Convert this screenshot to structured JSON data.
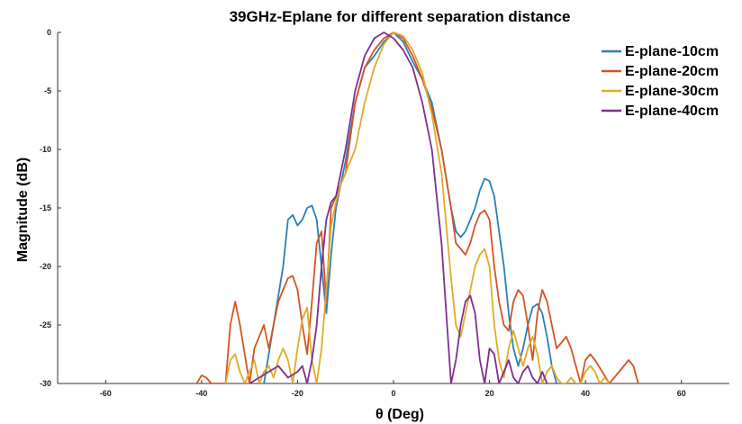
{
  "chart_data": {
    "type": "line",
    "title": "39GHz-Eplane for different separation distance",
    "xlabel": "θ (Deg)",
    "ylabel": "Magnitude (dB)",
    "xlim": [
      -70,
      70
    ],
    "ylim": [
      -30,
      0
    ],
    "xticks": [
      -60,
      -40,
      -20,
      0,
      20,
      40,
      60
    ],
    "yticks": [
      0,
      -5,
      -10,
      -15,
      -20,
      -25,
      -30
    ],
    "grid": false,
    "legend_position": "top-right",
    "series": [
      {
        "name": "E-plane-10cm",
        "color": "#2a7fb8",
        "x": [
          -27,
          -25,
          -23,
          -22,
          -21,
          -20,
          -19,
          -18,
          -17,
          -16,
          -15,
          -14,
          -13,
          -12,
          -10,
          -8,
          -6,
          -4,
          -2,
          0,
          2,
          4,
          6,
          8,
          10,
          12,
          13,
          14,
          15,
          16,
          17,
          18,
          19,
          20,
          21,
          22,
          23,
          24,
          25,
          26,
          27,
          28,
          29,
          30,
          31,
          32,
          33,
          34
        ],
        "y": [
          -30,
          -25,
          -20,
          -16,
          -15.6,
          -16.5,
          -16,
          -15,
          -14.8,
          -16,
          -20,
          -24,
          -19,
          -15,
          -11,
          -6,
          -3,
          -2,
          -0.8,
          0,
          -0.8,
          -2.5,
          -4,
          -6,
          -10,
          -15,
          -17,
          -17.5,
          -17,
          -16,
          -15,
          -13.5,
          -12.5,
          -12.7,
          -14,
          -17,
          -20,
          -24,
          -27,
          -28.5,
          -27,
          -25,
          -23.5,
          -23.2,
          -24,
          -26,
          -28.5,
          -30
        ]
      },
      {
        "name": "E-plane-20cm",
        "color": "#d45424",
        "x": [
          -41,
          -40,
          -39,
          -38,
          -35,
          -34,
          -33,
          -32,
          -30,
          -29,
          -28,
          -27,
          -26,
          -25,
          -24,
          -23,
          -22,
          -21,
          -20,
          -19,
          -18,
          -17,
          -16,
          -15,
          -14,
          -13,
          -12,
          -10,
          -8,
          -6,
          -4,
          -2,
          0,
          2,
          4,
          6,
          8,
          10,
          12,
          13,
          14,
          15,
          16,
          17,
          18,
          19,
          20,
          21,
          22,
          23,
          24,
          25,
          26,
          27,
          28,
          29,
          30,
          31,
          32,
          33,
          34,
          35,
          36,
          37,
          38,
          39,
          40,
          41,
          42,
          45,
          46,
          47,
          48,
          49,
          50,
          51
        ],
        "y": [
          -30,
          -29.3,
          -29.5,
          -30,
          -30,
          -25,
          -23,
          -25,
          -30,
          -27,
          -26,
          -25,
          -27,
          -25,
          -23,
          -22,
          -21,
          -20.8,
          -22,
          -25,
          -27.5,
          -23,
          -18,
          -17,
          -23,
          -15,
          -14,
          -12,
          -6,
          -3,
          -1.5,
          -0.5,
          0,
          -0.5,
          -2,
          -4,
          -6.5,
          -10,
          -15,
          -18,
          -18.5,
          -19,
          -18,
          -16.5,
          -15.5,
          -15.2,
          -16,
          -20,
          -23,
          -25,
          -25.5,
          -23,
          -22,
          -22.5,
          -25,
          -28,
          -24,
          -22,
          -23,
          -25,
          -27,
          -26.5,
          -26,
          -27,
          -28.5,
          -30,
          -28,
          -27.5,
          -28,
          -30,
          -29.5,
          -29,
          -28.5,
          -28,
          -28.5,
          -30
        ]
      },
      {
        "name": "E-plane-30cm",
        "color": "#e0ab27",
        "x": [
          -35,
          -34,
          -33,
          -32,
          -31,
          -30,
          -29,
          -28,
          -27,
          -26,
          -25,
          -24,
          -23,
          -22,
          -21,
          -20,
          -19,
          -18,
          -17,
          -16,
          -15,
          -14,
          -13,
          -12,
          -11,
          -10,
          -8,
          -6,
          -4,
          -2,
          0,
          2,
          4,
          6,
          8,
          10,
          12,
          13,
          14,
          15,
          16,
          17,
          18,
          19,
          20,
          21,
          22,
          23,
          24,
          25,
          26,
          27,
          28,
          29,
          30,
          31,
          32,
          33,
          34,
          35,
          36,
          37,
          38,
          39,
          40,
          41,
          42,
          43,
          44,
          45
        ],
        "y": [
          -30,
          -28,
          -27.5,
          -29,
          -30,
          -29,
          -28,
          -30,
          -29,
          -28.5,
          -29.5,
          -28,
          -27,
          -28,
          -30,
          -27,
          -24.5,
          -23.5,
          -28,
          -30,
          -27,
          -22,
          -16.5,
          -14.5,
          -13,
          -12,
          -10,
          -6,
          -3,
          -1,
          0,
          -0.3,
          -1.5,
          -3.5,
          -7,
          -12,
          -21,
          -25,
          -26,
          -24,
          -22,
          -20,
          -19,
          -18.5,
          -20,
          -25,
          -28,
          -29.5,
          -27,
          -25.5,
          -27,
          -28.5,
          -27,
          -26,
          -27.5,
          -30,
          -29,
          -28.5,
          -29.5,
          -30,
          -30,
          -29.5,
          -30,
          -30,
          -29,
          -28.5,
          -29,
          -30,
          -29.5,
          -30
        ]
      },
      {
        "name": "E-plane-40cm",
        "color": "#7e2f8e",
        "x": [
          -30,
          -28,
          -26,
          -24,
          -22,
          -20,
          -19,
          -18,
          -17,
          -16,
          -15,
          -14,
          -13,
          -12,
          -10,
          -8,
          -6,
          -4,
          -2,
          0,
          2,
          4,
          6,
          8,
          10,
          12,
          13,
          14,
          15,
          16,
          17,
          18,
          19,
          20,
          21,
          22,
          23,
          24,
          25,
          26,
          27,
          28,
          29,
          30,
          31,
          32
        ],
        "y": [
          -30,
          -29.5,
          -29,
          -28.5,
          -29.5,
          -29,
          -28.5,
          -30,
          -28,
          -25,
          -20,
          -16,
          -14.5,
          -14,
          -10,
          -5,
          -2,
          -0.5,
          0,
          -0.5,
          -1.5,
          -3,
          -6,
          -10,
          -18,
          -30,
          -28,
          -25,
          -23,
          -22.5,
          -24,
          -28,
          -30,
          -27,
          -27.5,
          -30,
          -29,
          -28,
          -29.5,
          -30,
          -29,
          -28.5,
          -29.5,
          -30,
          -29,
          -30
        ]
      }
    ]
  }
}
